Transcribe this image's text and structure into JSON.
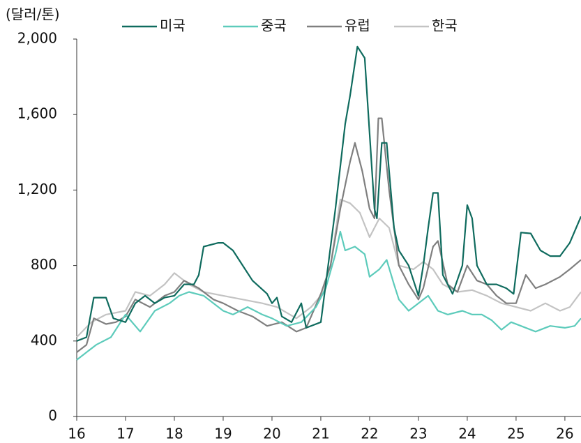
{
  "chart_data": {
    "type": "line",
    "y_axis_label": "(달러/톤)",
    "xlim": [
      16,
      26.33
    ],
    "xticks": [
      16,
      17,
      18,
      19,
      20,
      21,
      22,
      23,
      24,
      25,
      26
    ],
    "ylim": [
      0,
      2000
    ],
    "yticks": [
      0,
      400,
      800,
      {
        "value": 1200,
        "label": "1,200"
      },
      {
        "value": 1600,
        "label": "1,600"
      },
      {
        "value": 2000,
        "label": "2,000"
      }
    ],
    "grid": false,
    "legend": "top",
    "series": [
      {
        "name": "미국",
        "color": "#0f6b5e",
        "x": [
          16.0,
          16.2,
          16.35,
          16.6,
          16.75,
          17.0,
          17.2,
          17.4,
          17.6,
          17.8,
          18.0,
          18.2,
          18.4,
          18.5,
          18.6,
          18.9,
          19.0,
          19.2,
          19.4,
          19.6,
          19.9,
          20.0,
          20.1,
          20.2,
          20.4,
          20.6,
          20.7,
          21.0,
          21.1,
          21.3,
          21.5,
          21.6,
          21.75,
          21.9,
          22.0,
          22.1,
          22.15,
          22.25,
          22.35,
          22.5,
          22.6,
          22.8,
          23.0,
          23.1,
          23.2,
          23.3,
          23.4,
          23.5,
          23.7,
          23.9,
          24.0,
          24.1,
          24.2,
          24.4,
          24.6,
          24.8,
          24.95,
          25.1,
          25.3,
          25.5,
          25.7,
          25.9,
          26.1,
          26.33
        ],
        "values": [
          400,
          420,
          630,
          630,
          520,
          500,
          600,
          640,
          600,
          630,
          640,
          700,
          700,
          750,
          900,
          920,
          920,
          880,
          800,
          720,
          650,
          600,
          630,
          530,
          500,
          600,
          470,
          500,
          700,
          1100,
          1550,
          1700,
          1960,
          1900,
          1500,
          1100,
          1050,
          1450,
          1450,
          1000,
          880,
          800,
          640,
          800,
          1000,
          1185,
          1185,
          750,
          650,
          800,
          1120,
          1050,
          800,
          700,
          700,
          680,
          650,
          975,
          970,
          880,
          850,
          850,
          920,
          1060
        ]
      },
      {
        "name": "중국",
        "color": "#5dcbbb",
        "x": [
          16.0,
          16.15,
          16.4,
          16.7,
          17.0,
          17.3,
          17.6,
          17.9,
          18.1,
          18.3,
          18.6,
          19.0,
          19.2,
          19.5,
          19.8,
          20.0,
          20.3,
          20.6,
          20.9,
          21.1,
          21.3,
          21.4,
          21.5,
          21.7,
          21.9,
          22.0,
          22.2,
          22.35,
          22.5,
          22.6,
          22.8,
          23.0,
          23.2,
          23.4,
          23.6,
          23.9,
          24.1,
          24.3,
          24.5,
          24.7,
          24.9,
          25.1,
          25.4,
          25.7,
          26.0,
          26.2,
          26.33
        ],
        "values": [
          300,
          330,
          380,
          420,
          540,
          450,
          560,
          600,
          640,
          660,
          640,
          560,
          540,
          580,
          540,
          520,
          480,
          500,
          580,
          680,
          860,
          980,
          880,
          900,
          860,
          740,
          780,
          830,
          700,
          620,
          560,
          600,
          640,
          560,
          540,
          560,
          540,
          540,
          510,
          460,
          500,
          480,
          450,
          480,
          470,
          480,
          520
        ]
      },
      {
        "name": "유럽",
        "color": "#7f7f7f",
        "x": [
          16.0,
          16.2,
          16.35,
          16.6,
          16.8,
          17.0,
          17.2,
          17.5,
          17.8,
          18.0,
          18.2,
          18.5,
          18.8,
          19.0,
          19.3,
          19.6,
          19.9,
          20.2,
          20.5,
          20.7,
          21.0,
          21.2,
          21.4,
          21.6,
          21.7,
          21.85,
          22.0,
          22.1,
          22.18,
          22.25,
          22.4,
          22.6,
          22.8,
          23.0,
          23.1,
          23.3,
          23.4,
          23.6,
          23.8,
          24.0,
          24.2,
          24.4,
          24.6,
          24.8,
          25.0,
          25.2,
          25.4,
          25.6,
          25.9,
          26.1,
          26.33
        ],
        "values": [
          340,
          380,
          520,
          490,
          500,
          530,
          620,
          580,
          640,
          660,
          720,
          680,
          620,
          600,
          560,
          530,
          480,
          500,
          450,
          470,
          650,
          800,
          1100,
          1350,
          1450,
          1300,
          1100,
          1050,
          1580,
          1580,
          1200,
          800,
          700,
          620,
          680,
          900,
          930,
          700,
          660,
          800,
          720,
          700,
          640,
          600,
          600,
          750,
          680,
          700,
          740,
          780,
          830
        ]
      },
      {
        "name": "한국",
        "color": "#c3c3c3",
        "x": [
          16.0,
          16.3,
          16.6,
          17.0,
          17.2,
          17.5,
          17.8,
          18.0,
          18.3,
          18.6,
          19.0,
          19.4,
          19.8,
          20.1,
          20.5,
          20.8,
          21.0,
          21.2,
          21.4,
          21.6,
          21.8,
          22.0,
          22.2,
          22.4,
          22.6,
          22.9,
          23.1,
          23.3,
          23.5,
          23.8,
          24.1,
          24.4,
          24.7,
          25.0,
          25.3,
          25.6,
          25.9,
          26.1,
          26.33
        ],
        "values": [
          420,
          500,
          540,
          560,
          660,
          640,
          700,
          760,
          700,
          660,
          640,
          620,
          600,
          580,
          520,
          580,
          640,
          800,
          1150,
          1130,
          1080,
          950,
          1050,
          1000,
          800,
          780,
          820,
          780,
          700,
          660,
          670,
          640,
          600,
          580,
          560,
          600,
          560,
          580,
          660
        ]
      }
    ]
  }
}
